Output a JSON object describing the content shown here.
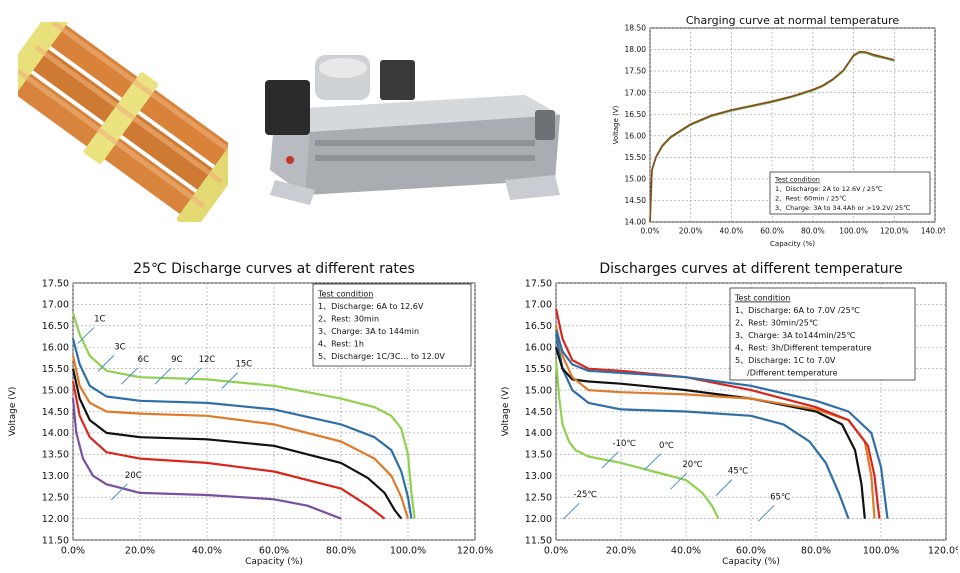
{
  "colors": {
    "grid": "#9a9a9a",
    "charge_curve": "#8a4a1a",
    "charge_curve_2": "#6aa84f",
    "green": "#8fd14f",
    "blue": "#2f6fa8",
    "orange": "#e07a2a",
    "black": "#111111",
    "red": "#d9261c",
    "purple": "#7a4fa0",
    "annotation_arrow": "#4a90c8"
  },
  "photos": {
    "cell_pack": "battery-cells-photo",
    "battery_module": "battery-module-photo"
  },
  "chart_data": [
    {
      "id": "charging",
      "type": "line",
      "title": "Charging curve at normal temperature",
      "xlabel": "Capacity (%)",
      "ylabel": "Voltage (V)",
      "xlim": [
        0,
        140
      ],
      "ylim": [
        14.0,
        18.5
      ],
      "x_ticks": [
        0,
        20,
        40,
        60,
        80,
        100,
        120,
        140
      ],
      "x_tick_labels": [
        "0.0%",
        "20.0%",
        "40.0%",
        "60.0%",
        "80.0%",
        "100.0%",
        "120.0%",
        "140.0%"
      ],
      "y_ticks": [
        14.0,
        14.5,
        15.0,
        15.5,
        16.0,
        16.5,
        17.0,
        17.5,
        18.0,
        18.5
      ],
      "y_tick_labels": [
        "14.00",
        "14.50",
        "15.00",
        "15.50",
        "16.00",
        "16.50",
        "17.00",
        "17.50",
        "18.00",
        "18.50"
      ],
      "grid": true,
      "legend_box": {
        "title": "Test condition",
        "lines": [
          "1、Discharge: 2A to 12.6V / 25℃",
          "2、Rest: 60min / 25℃",
          "3、Charge: 3A to 34.4Ah or >19.2V/ 25℃"
        ],
        "placement": "bottom-right"
      },
      "series": [
        {
          "color": "charge_curve_2",
          "x": [
            0,
            1,
            3,
            6,
            10,
            15,
            20,
            30,
            40,
            50,
            60,
            70,
            80,
            85,
            90,
            95,
            100,
            103,
            106,
            110,
            115,
            120
          ],
          "y": [
            14.0,
            15.2,
            15.5,
            15.75,
            15.95,
            16.1,
            16.25,
            16.45,
            16.58,
            16.68,
            16.78,
            16.9,
            17.05,
            17.15,
            17.3,
            17.5,
            17.85,
            17.93,
            17.92,
            17.85,
            17.8,
            17.74
          ]
        },
        {
          "color": "charge_curve",
          "x": [
            0,
            1,
            3,
            6,
            10,
            15,
            20,
            30,
            40,
            50,
            60,
            70,
            80,
            85,
            90,
            95,
            100,
            103,
            106,
            110,
            115,
            120
          ],
          "y": [
            14.0,
            15.22,
            15.52,
            15.77,
            15.97,
            16.12,
            16.27,
            16.47,
            16.6,
            16.7,
            16.8,
            16.92,
            17.07,
            17.17,
            17.32,
            17.52,
            17.87,
            17.95,
            17.94,
            17.88,
            17.82,
            17.76
          ]
        }
      ]
    },
    {
      "id": "rates",
      "type": "line",
      "title": "25℃ Discharge curves at different rates",
      "xlabel": "Capacity (%)",
      "ylabel": "Voltage (V)",
      "xlim": [
        0,
        120
      ],
      "ylim": [
        11.5,
        17.5
      ],
      "x_ticks": [
        0,
        20,
        40,
        60,
        80,
        100,
        120
      ],
      "x_tick_labels": [
        "0.0%",
        "20.0%",
        "40.0%",
        "60.0%",
        "80.0%",
        "100.0%",
        "120.0%"
      ],
      "y_ticks": [
        11.5,
        12.0,
        12.5,
        13.0,
        13.5,
        14.0,
        14.5,
        15.0,
        15.5,
        16.0,
        16.5,
        17.0,
        17.5
      ],
      "y_tick_labels": [
        "11.50",
        "12.00",
        "12.50",
        "13.00",
        "13.50",
        "14.00",
        "14.50",
        "15.00",
        "15.50",
        "16.00",
        "16.50",
        "17.00",
        "17.50"
      ],
      "grid": true,
      "legend_box": {
        "title": "Test condition",
        "lines": [
          "1、Discharge: 6A to 12.6V",
          "2、Rest: 30min",
          "3、Charge: 3A to 144min",
          "4、Rest: 1h",
          "5、Discharge: 1C/3C… to 12.0V"
        ],
        "placement": "top-right"
      },
      "series": [
        {
          "name": "1C",
          "color": "green",
          "x": [
            0,
            2,
            5,
            10,
            20,
            40,
            60,
            80,
            90,
            95,
            98,
            100,
            101,
            102
          ],
          "y": [
            16.8,
            16.3,
            15.8,
            15.45,
            15.3,
            15.25,
            15.1,
            14.8,
            14.6,
            14.4,
            14.1,
            13.5,
            12.6,
            12.0
          ]
        },
        {
          "name": "3C",
          "color": "blue",
          "x": [
            0,
            2,
            5,
            10,
            20,
            40,
            60,
            80,
            90,
            95,
            98,
            100,
            101
          ],
          "y": [
            16.2,
            15.6,
            15.1,
            14.85,
            14.75,
            14.7,
            14.55,
            14.2,
            13.9,
            13.6,
            13.1,
            12.5,
            12.0
          ]
        },
        {
          "name": "6C",
          "color": "orange",
          "x": [
            0,
            2,
            5,
            10,
            20,
            40,
            60,
            80,
            90,
            95,
            98,
            100
          ],
          "y": [
            15.8,
            15.1,
            14.7,
            14.5,
            14.45,
            14.4,
            14.2,
            13.8,
            13.4,
            13.0,
            12.5,
            12.0
          ]
        },
        {
          "name": "9C",
          "color": "black",
          "x": [
            0,
            2,
            5,
            10,
            20,
            40,
            60,
            80,
            88,
            93,
            96,
            98
          ],
          "y": [
            15.5,
            14.8,
            14.3,
            14.0,
            13.9,
            13.85,
            13.7,
            13.3,
            12.95,
            12.6,
            12.2,
            12.0
          ]
        },
        {
          "name": "12C",
          "color": "red",
          "x": [
            0,
            2,
            5,
            10,
            20,
            40,
            60,
            80,
            88,
            93
          ],
          "y": [
            15.2,
            14.4,
            13.9,
            13.55,
            13.4,
            13.3,
            13.1,
            12.7,
            12.3,
            12.0
          ]
        },
        {
          "name": "15C",
          "color": "purple",
          "x": [
            0,
            1,
            3,
            6,
            10,
            15,
            20,
            40,
            60,
            70,
            80
          ],
          "y": [
            14.8,
            14.0,
            13.4,
            13.0,
            12.8,
            12.7,
            12.6,
            12.55,
            12.45,
            12.3,
            12.0
          ]
        }
      ],
      "annotations": [
        {
          "text": "1C",
          "x": 8,
          "y": 16.6
        },
        {
          "text": "3C",
          "x": 14,
          "y": 15.95
        },
        {
          "text": "6C",
          "x": 21,
          "y": 15.65
        },
        {
          "text": "9C",
          "x": 31,
          "y": 15.65
        },
        {
          "text": "12C",
          "x": 40,
          "y": 15.65
        },
        {
          "text": "15C",
          "x": 51,
          "y": 15.55
        },
        {
          "text": "20C",
          "x": 18,
          "y": 12.95
        }
      ]
    },
    {
      "id": "temperature",
      "type": "line",
      "title": "Discharges curves at different temperature",
      "xlabel": "Capacity (%)",
      "ylabel": "Voltage (V)",
      "xlim": [
        0,
        120
      ],
      "ylim": [
        11.5,
        17.5
      ],
      "x_ticks": [
        0,
        20,
        40,
        60,
        80,
        100,
        120
      ],
      "x_tick_labels": [
        "0.0%",
        "20.0%",
        "40.0%",
        "60.0%",
        "80.0%",
        "100.0%",
        "120.0%"
      ],
      "y_ticks": [
        11.5,
        12.0,
        12.5,
        13.0,
        13.5,
        14.0,
        14.5,
        15.0,
        15.5,
        16.0,
        16.5,
        17.0,
        17.5
      ],
      "y_tick_labels": [
        "11.50",
        "12.00",
        "12.50",
        "13.00",
        "13.50",
        "14.00",
        "14.50",
        "15.00",
        "15.50",
        "16.00",
        "16.50",
        "17.00",
        "17.50"
      ],
      "grid": true,
      "legend_box": {
        "title": "Test condition",
        "lines": [
          "1、Discharge: 6A to 7.0V /25℃",
          "2、Rest: 30min/25℃",
          "3、Charge: 3A to144min/25℃",
          "4、Rest: 3h/Different temperature",
          "5、Discharge: 1C to 7.0V",
          "/Different temperature"
        ],
        "placement": "top-right"
      },
      "series": [
        {
          "name": "-25℃",
          "color": "green",
          "x": [
            0,
            1,
            2,
            4,
            6,
            10,
            20,
            30,
            40,
            45,
            48,
            50
          ],
          "y": [
            15.7,
            14.8,
            14.2,
            13.8,
            13.6,
            13.45,
            13.3,
            13.1,
            12.9,
            12.6,
            12.3,
            12.0
          ]
        },
        {
          "name": "-10℃",
          "color": "blue",
          "x": [
            0,
            2,
            5,
            10,
            20,
            40,
            60,
            70,
            78,
            83,
            87,
            90
          ],
          "y": [
            16.3,
            15.5,
            15.0,
            14.7,
            14.55,
            14.5,
            14.4,
            14.2,
            13.8,
            13.3,
            12.6,
            12.0
          ]
        },
        {
          "name": "0℃",
          "color": "black",
          "x": [
            0,
            2,
            5,
            10,
            20,
            40,
            60,
            80,
            88,
            92,
            94,
            95
          ],
          "y": [
            16.0,
            15.5,
            15.25,
            15.2,
            15.15,
            15.0,
            14.8,
            14.5,
            14.2,
            13.6,
            12.8,
            12.0
          ]
        },
        {
          "name": "20℃",
          "color": "orange",
          "x": [
            0,
            2,
            5,
            10,
            20,
            40,
            60,
            80,
            90,
            95,
            97,
            98
          ],
          "y": [
            16.5,
            15.8,
            15.3,
            15.0,
            14.95,
            14.9,
            14.8,
            14.55,
            14.3,
            13.8,
            13.0,
            12.0
          ]
        },
        {
          "name": "45℃",
          "color": "red",
          "x": [
            0,
            2,
            5,
            10,
            20,
            40,
            60,
            80,
            90,
            96,
            98,
            99.5
          ],
          "y": [
            16.9,
            16.2,
            15.7,
            15.5,
            15.45,
            15.3,
            15.0,
            14.6,
            14.3,
            13.7,
            13.0,
            12.0
          ]
        },
        {
          "name": "65℃",
          "color": "blue",
          "x": [
            0,
            2,
            5,
            10,
            20,
            40,
            60,
            80,
            90,
            97,
            100,
            102
          ],
          "y": [
            16.4,
            15.9,
            15.6,
            15.45,
            15.4,
            15.3,
            15.1,
            14.75,
            14.5,
            14.0,
            13.2,
            12.0
          ]
        }
      ],
      "annotations": [
        {
          "text": "-10℃",
          "x": 21,
          "y": 13.7
        },
        {
          "text": "0℃",
          "x": 34,
          "y": 13.65
        },
        {
          "text": "20℃",
          "x": 42,
          "y": 13.2
        },
        {
          "text": "45℃",
          "x": 56,
          "y": 13.05
        },
        {
          "text": "65℃",
          "x": 69,
          "y": 12.45
        },
        {
          "text": "-25℃",
          "x": 9,
          "y": 12.5
        }
      ]
    }
  ]
}
